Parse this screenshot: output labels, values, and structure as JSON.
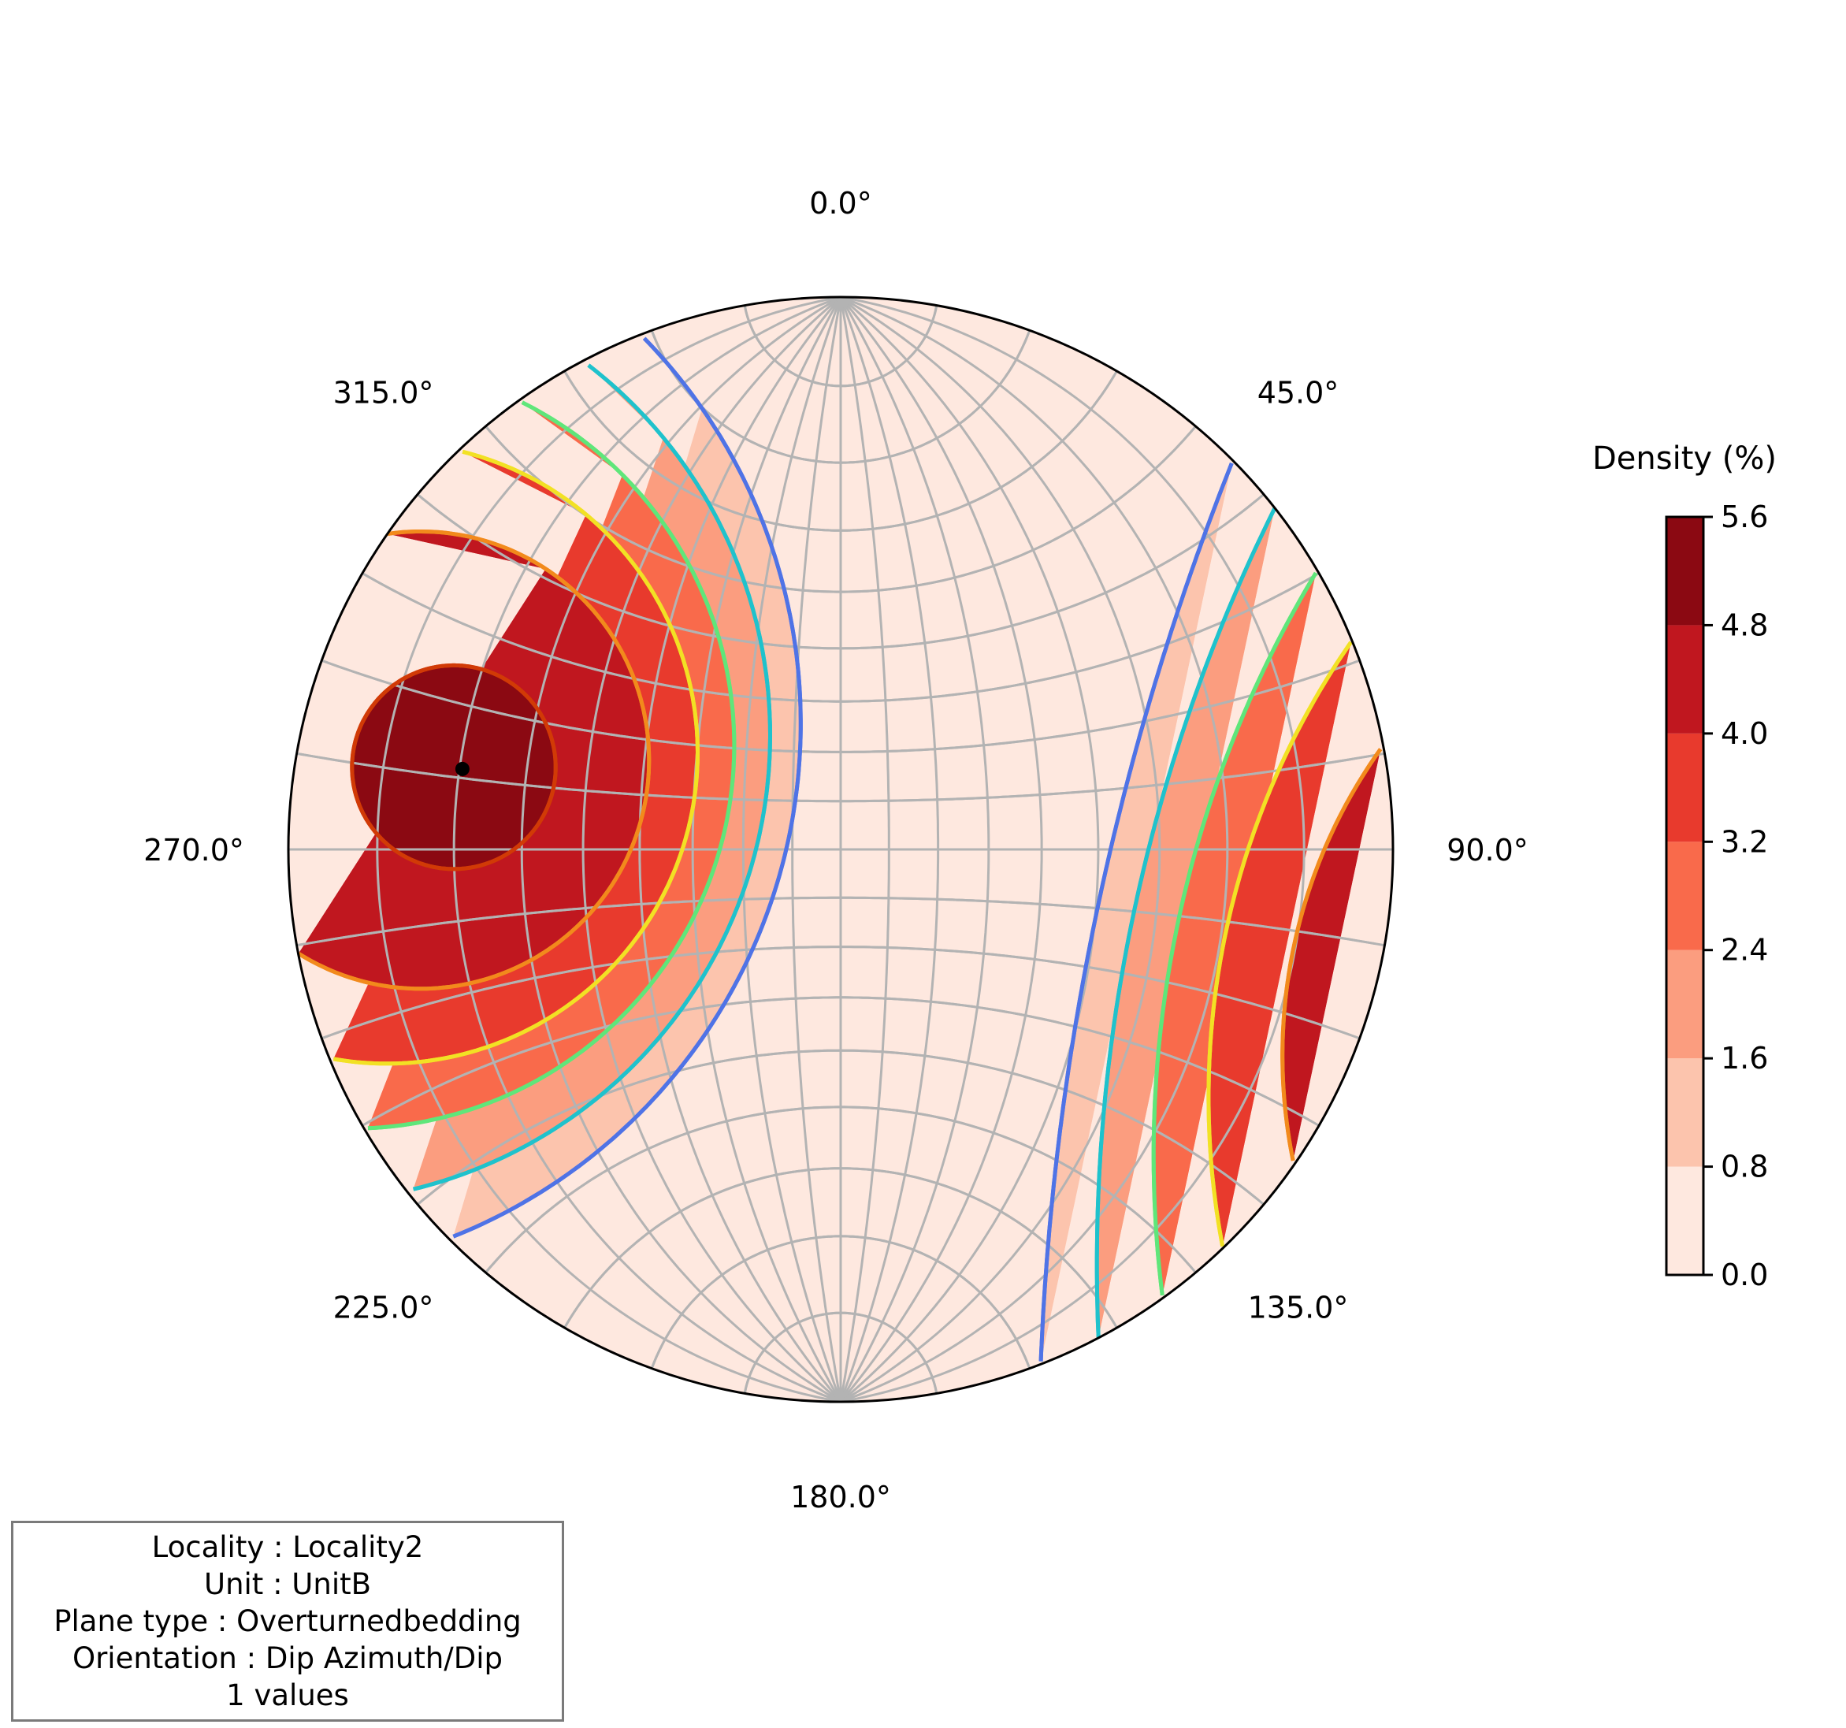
{
  "chart_data": {
    "type": "contour",
    "projection": "stereonet",
    "azimuth_labels": [
      {
        "deg": 0,
        "text": "0.0°"
      },
      {
        "deg": 45,
        "text": "45.0°"
      },
      {
        "deg": 90,
        "text": "90.0°"
      },
      {
        "deg": 135,
        "text": "135.0°"
      },
      {
        "deg": 180,
        "text": "180.0°"
      },
      {
        "deg": 225,
        "text": "225.0°"
      },
      {
        "deg": 270,
        "text": "270.0°"
      },
      {
        "deg": 315,
        "text": "315.0°"
      }
    ],
    "pole": {
      "trend": 282,
      "plunge": 20
    },
    "levels": [
      0.0,
      0.8,
      1.6,
      2.4,
      3.2,
      4.0,
      4.8,
      5.6
    ],
    "tick_labels": [
      "0.0",
      "0.8",
      "1.6",
      "2.4",
      "3.2",
      "4.0",
      "4.8",
      "5.6"
    ],
    "fill_colors": [
      "#fee8df",
      "#fcc4ad",
      "#fb9d7f",
      "#f96a4b",
      "#e83a2d",
      "#c0171f",
      "#8b0912"
    ],
    "line_colors": [
      "#4f73e6",
      "#1fc2cc",
      "#5fe67a",
      "#f2e124",
      "#f28a1c",
      "#d13a06"
    ],
    "colorbar_title": "Density (%)",
    "grid": true
  },
  "info": {
    "locality": "Locality : Locality2",
    "unit": "Unit : UnitB",
    "plane_type": "Plane type : Overturnedbedding",
    "orientation": "Orientation : Dip Azimuth/Dip",
    "count": "1 values"
  }
}
